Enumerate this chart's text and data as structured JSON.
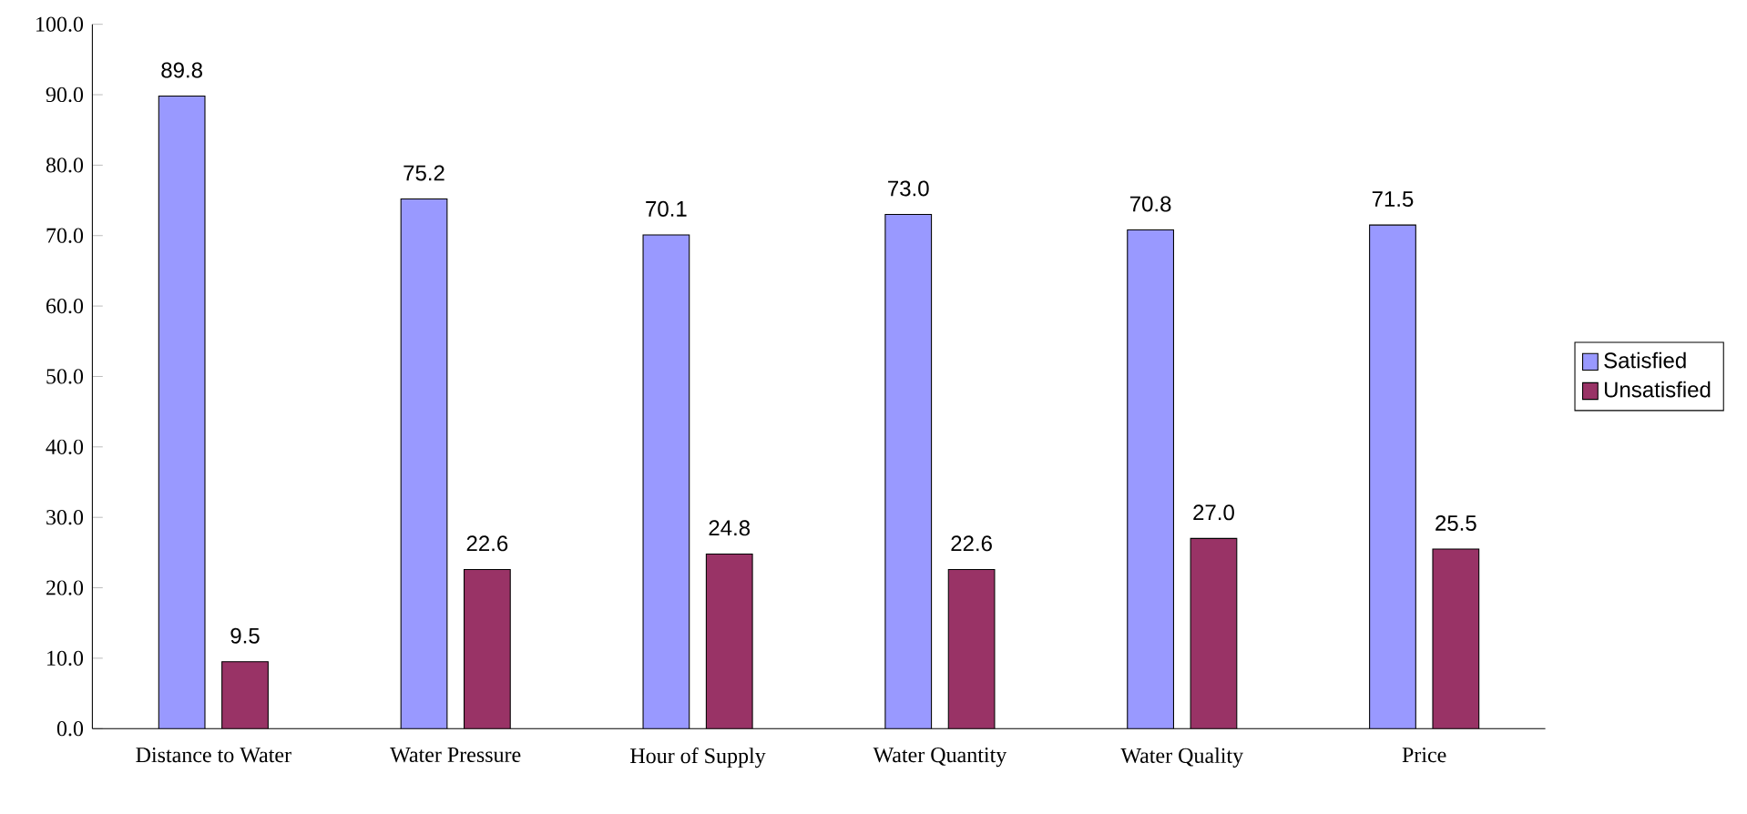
{
  "chart_data": {
    "type": "bar",
    "categories": [
      "Distance to Water",
      "Water Pressure",
      "Hour of Supply",
      "Water Quantity",
      "Water Quality",
      "Price"
    ],
    "series": [
      {
        "name": "Satisfied",
        "color": "#9999ff",
        "values": [
          89.8,
          75.2,
          70.1,
          73.0,
          70.8,
          71.5
        ],
        "value_labels": [
          "89.8",
          "75.2",
          "70.1",
          "73.0",
          "70.8",
          "71.5"
        ]
      },
      {
        "name": "Unsatisfied",
        "color": "#993366",
        "values": [
          9.5,
          22.6,
          24.8,
          22.6,
          27.0,
          25.5
        ],
        "value_labels": [
          "9.5",
          "22.6",
          "24.8",
          "22.6",
          "27.0",
          "25.5"
        ]
      }
    ],
    "ylim": [
      0,
      100
    ],
    "yticks": [
      {
        "value": 0,
        "label": "0.0"
      },
      {
        "value": 10,
        "label": "10.0"
      },
      {
        "value": 20,
        "label": "20.0"
      },
      {
        "value": 30,
        "label": "30.0"
      },
      {
        "value": 40,
        "label": "40.0"
      },
      {
        "value": 50,
        "label": "50.0"
      },
      {
        "value": 60,
        "label": "60.0"
      },
      {
        "value": 70,
        "label": "70.0"
      },
      {
        "value": 80,
        "label": "80.0"
      },
      {
        "value": 90,
        "label": "90.0"
      },
      {
        "value": 100,
        "label": "100.0"
      }
    ],
    "legend": "right",
    "grid": false
  }
}
